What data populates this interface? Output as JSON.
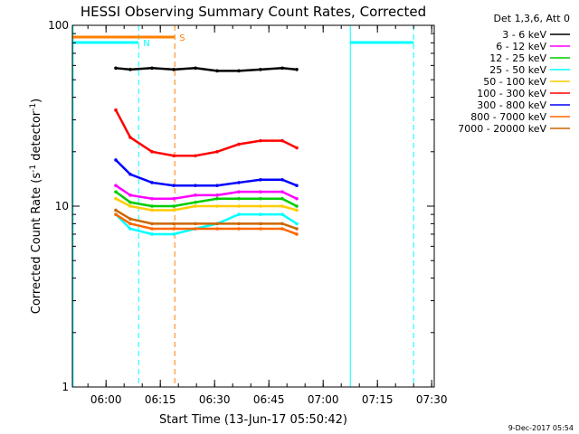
{
  "chart_data": {
    "type": "line",
    "title": "HESSI Observing Summary Count Rates, Corrected",
    "xlabel": "Start Time (13-Jun-17 05:50:42)",
    "ylabel_main": "Corrected Count Rate (s",
    "ylabel_sup1": "-1",
    "ylabel_mid": " detector",
    "ylabel_sup2": "-1",
    "ylabel_end": ")",
    "y_scale": "log",
    "ylim": [
      1,
      100
    ],
    "xlim_minutes": [
      0,
      100
    ],
    "y_ticks": [
      {
        "value": 1,
        "label": "1"
      },
      {
        "value": 10,
        "label": "10"
      },
      {
        "value": 100,
        "label": "100"
      }
    ],
    "x_ticks": [
      {
        "minutes": 9.3,
        "label": "06:00"
      },
      {
        "minutes": 24.3,
        "label": "06:15"
      },
      {
        "minutes": 39.3,
        "label": "06:30"
      },
      {
        "minutes": 54.3,
        "label": "06:45"
      },
      {
        "minutes": 69.3,
        "label": "07:00"
      },
      {
        "minutes": 84.3,
        "label": "07:15"
      },
      {
        "minutes": 99.3,
        "label": "07:30"
      }
    ],
    "legend_title": "Det 1,3,6, Att 0",
    "series": [
      {
        "name": "3 - 6 keV",
        "color": "#000000",
        "values": [
          58,
          57,
          58,
          57,
          58,
          56,
          56,
          57,
          58,
          57
        ]
      },
      {
        "name": "6 - 12 keV",
        "color": "#ff00ff",
        "values": [
          13,
          11.5,
          11,
          11,
          11.5,
          11.5,
          12,
          12,
          12,
          11
        ]
      },
      {
        "name": "12 - 25 keV",
        "color": "#00cc00",
        "values": [
          12,
          10.5,
          10,
          10,
          10.5,
          11,
          11,
          11,
          11,
          10
        ]
      },
      {
        "name": "25 - 50 keV",
        "color": "#00ffff",
        "values": [
          9,
          7.5,
          7,
          7,
          7.5,
          8,
          9,
          9,
          9,
          8
        ]
      },
      {
        "name": "50 - 100 keV",
        "color": "#ffcc00",
        "values": [
          11,
          10,
          9.5,
          9.5,
          10,
          10,
          10,
          10,
          10,
          9.5
        ]
      },
      {
        "name": "100 - 300 keV",
        "color": "#ff0000",
        "values": [
          34,
          24,
          20,
          19,
          19,
          20,
          22,
          23,
          23,
          21
        ]
      },
      {
        "name": "300 - 800 keV",
        "color": "#0000ff",
        "values": [
          18,
          15,
          13.5,
          13,
          13,
          13,
          13.5,
          14,
          14,
          13
        ]
      },
      {
        "name": "800 - 7000 keV",
        "color": "#ff6600",
        "values": [
          9,
          8,
          7.5,
          7.5,
          7.5,
          7.5,
          7.5,
          7.5,
          7.5,
          7
        ]
      },
      {
        "name": "7000 - 20000 keV",
        "color": "#cc6600",
        "values": [
          9.5,
          8.5,
          8,
          8,
          8,
          8,
          8,
          8,
          8,
          7.5
        ]
      }
    ],
    "x_minutes": [
      12,
      16,
      22,
      28,
      34,
      40,
      46,
      52,
      58,
      62
    ],
    "vertical_markers": [
      {
        "minutes": 0.2,
        "color": "#00ffff",
        "style": "solid"
      },
      {
        "minutes": 18.3,
        "color": "#00ffff",
        "style": "dashed"
      },
      {
        "minutes": 28.3,
        "color": "#ff8000",
        "style": "dashed"
      },
      {
        "minutes": 76.8,
        "color": "#00ffff",
        "style": "solid"
      },
      {
        "minutes": 94.3,
        "color": "#00ffff",
        "style": "dashed"
      }
    ],
    "flags": [
      {
        "label": "N",
        "color": "#00ffff",
        "segments": [
          [
            0,
            18.3
          ],
          [
            76.8,
            94.3
          ]
        ]
      },
      {
        "label": "S",
        "color": "#ff8000",
        "segments": [
          [
            0,
            28.3
          ]
        ]
      }
    ],
    "footer_date": "9-Dec-2017 05:54"
  }
}
